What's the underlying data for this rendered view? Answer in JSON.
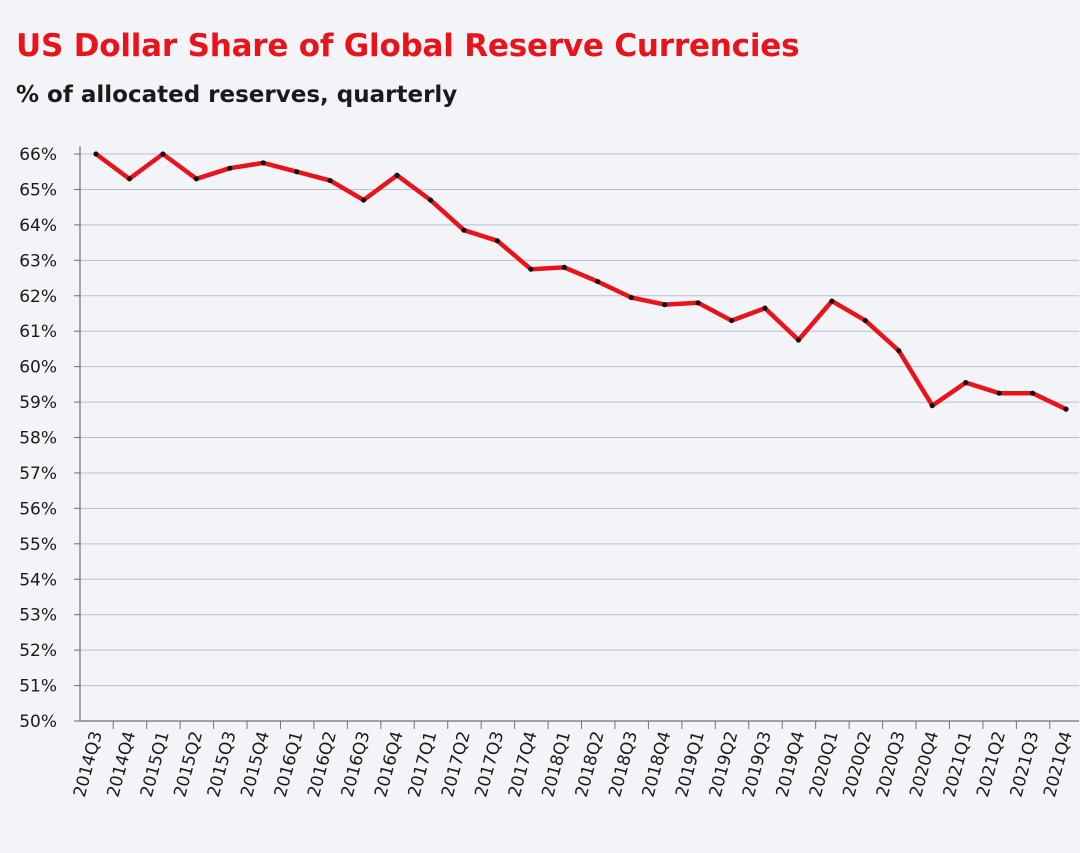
{
  "chart_data": {
    "type": "line",
    "title": "US Dollar Share of Global Reserve Currencies",
    "subtitle": "% of allocated reserves, quarterly",
    "xlabel": "",
    "ylabel": "",
    "ylim": [
      50,
      66
    ],
    "yticks": [
      "50%",
      "51%",
      "52%",
      "53%",
      "54%",
      "55%",
      "56%",
      "57%",
      "58%",
      "59%",
      "60%",
      "61%",
      "62%",
      "63%",
      "64%",
      "65%",
      "66%"
    ],
    "grid": true,
    "categories": [
      "2014Q3",
      "2014Q4",
      "2015Q1",
      "2015Q2",
      "2015Q3",
      "2015Q4",
      "2016Q1",
      "2016Q2",
      "2016Q3",
      "2016Q4",
      "2017Q1",
      "2017Q2",
      "2017Q3",
      "2017Q4",
      "2018Q1",
      "2018Q2",
      "2018Q3",
      "2018Q4",
      "2019Q1",
      "2019Q2",
      "2019Q3",
      "2019Q4",
      "2020Q1",
      "2020Q2",
      "2020Q3",
      "2020Q4",
      "2021Q1",
      "2021Q2",
      "2021Q3",
      "2021Q4"
    ],
    "series": [
      {
        "name": "USD share",
        "color": "#e8131b",
        "marker_color": "#111111",
        "values": [
          66.0,
          65.3,
          66.0,
          65.3,
          65.6,
          65.75,
          65.5,
          65.25,
          64.7,
          65.4,
          64.7,
          63.85,
          63.55,
          62.75,
          62.8,
          62.4,
          61.95,
          61.75,
          61.8,
          61.3,
          61.65,
          60.75,
          61.85,
          61.3,
          60.45,
          58.9,
          59.55,
          59.25,
          59.25,
          58.8
        ]
      }
    ]
  }
}
